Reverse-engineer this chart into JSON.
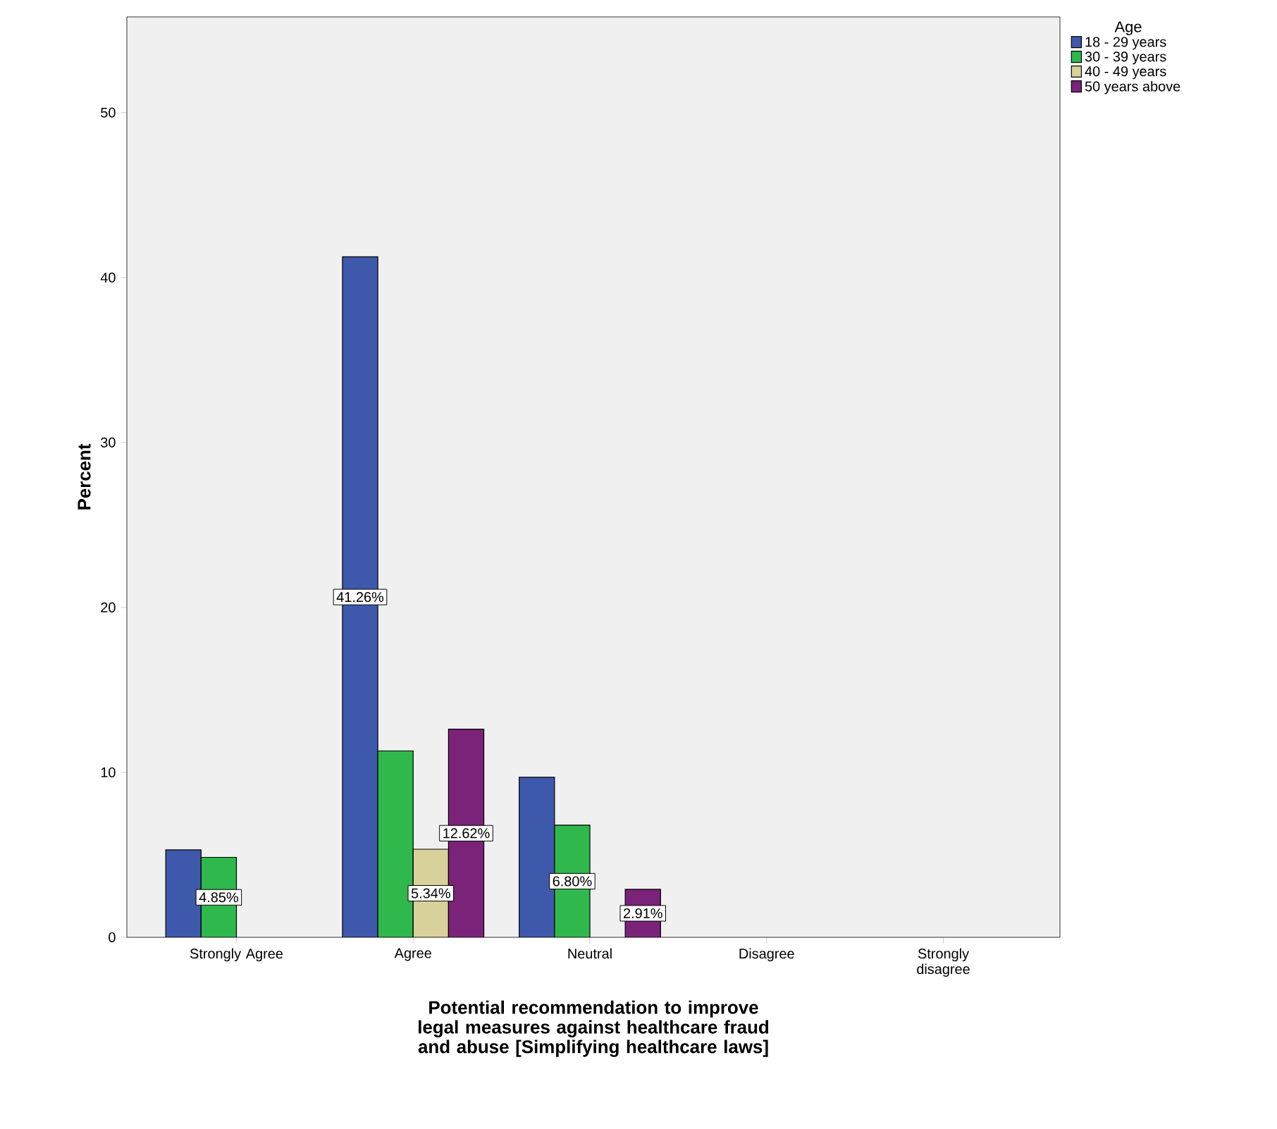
{
  "chart_data": {
    "type": "bar",
    "xlabel": "Potential recommendation to improve legal measures against healthcare fraud and abuse [Simplifying healthcare laws]",
    "ylabel": "Percent",
    "legend_title": "Age",
    "legend": "right",
    "categories": [
      "Strongly Agree",
      "Agree",
      "Neutral",
      "Disagree",
      "Strongly disagree"
    ],
    "series": [
      {
        "name": "18 - 29 years",
        "color": "#3e58ac",
        "values": [
          5.3,
          41.26,
          9.7,
          null,
          null
        ],
        "value_labels": [
          null,
          "41.26%",
          null,
          null,
          null
        ]
      },
      {
        "name": "30 - 39 years",
        "color": "#2fb84b",
        "values": [
          4.85,
          11.3,
          6.8,
          null,
          null
        ],
        "value_labels": [
          "4.85%",
          null,
          "6.80%",
          null,
          null
        ]
      },
      {
        "name": "40 - 49 years",
        "color": "#d8d29a",
        "values": [
          null,
          5.34,
          null,
          null,
          null
        ],
        "value_labels": [
          null,
          "5.34%",
          null,
          null,
          null
        ]
      },
      {
        "name": "50 years above",
        "color": "#7a2379",
        "values": [
          null,
          12.62,
          2.91,
          null,
          null
        ],
        "value_labels": [
          null,
          "12.62%",
          "2.91%",
          null,
          null
        ]
      }
    ],
    "ylim": [
      0,
      55.8
    ],
    "yticks": [
      0,
      10,
      20,
      30,
      40,
      50
    ]
  }
}
